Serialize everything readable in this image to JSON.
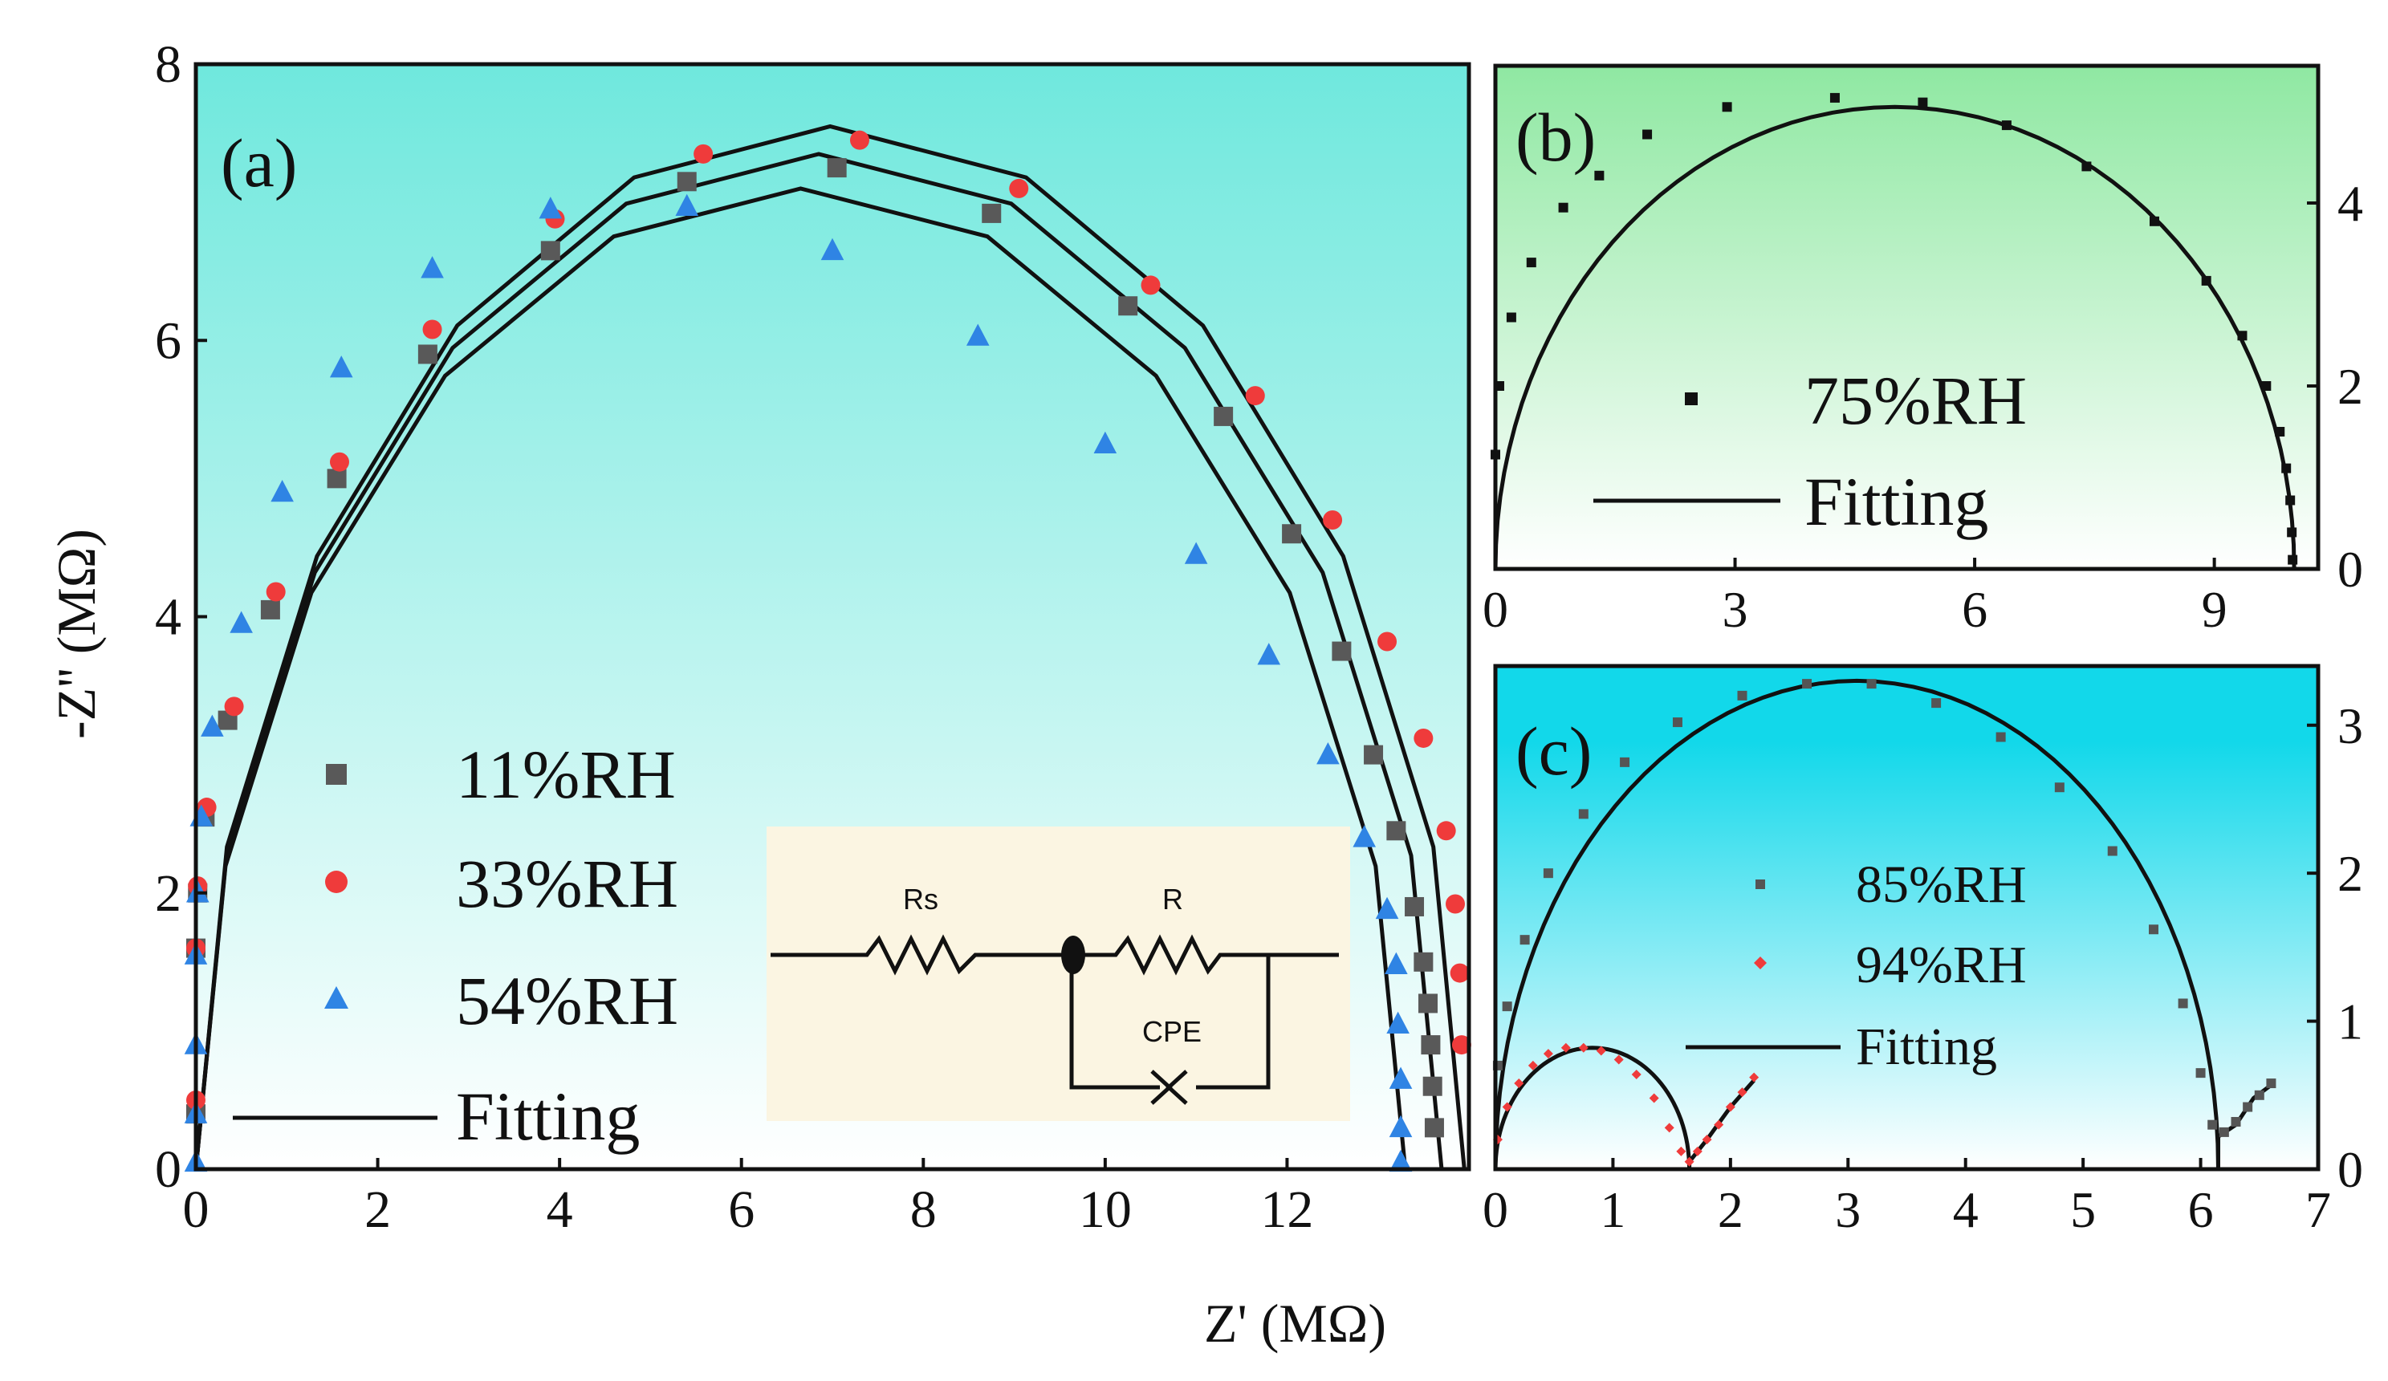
{
  "colors": {
    "series_11": "#595959",
    "series_33": "#ef3b3b",
    "series_54": "#2f84e4",
    "series_75": "#111111",
    "series_85": "#555555",
    "series_94": "#ef3b3b",
    "fit": "#111111",
    "bg_a_top": "#6fe8dd",
    "bg_a_bottom": "#ffffff",
    "bg_b_top": "#8fe8a2",
    "bg_b_bottom": "#ffffff",
    "bg_c_top": "#12d8ea",
    "bg_c_bottom": "#ffffff",
    "circuit_bg": "#fbf5e2"
  },
  "chart_data": [
    {
      "id": "a",
      "type": "scatter",
      "panel_label": "(a)",
      "xlabel": "Z' (MΩ)",
      "ylabel": "-Z'' (MΩ)",
      "xlim": [
        0,
        14
      ],
      "ylim": [
        0,
        8
      ],
      "xticks": [
        "0",
        "2",
        "4",
        "6",
        "8",
        "10",
        "12"
      ],
      "yticks": [
        "0",
        "2",
        "4",
        "6",
        "8"
      ],
      "series": [
        {
          "name": "11%RH",
          "marker": "square",
          "R": 13.7,
          "fit_peak": 7.35,
          "fit_points": 10,
          "point_peak": 7.25,
          "x": [
            0.0,
            0.0,
            0.02,
            0.1,
            0.35,
            0.82,
            1.55,
            2.55,
            3.9,
            5.4,
            7.05,
            8.75,
            10.25,
            11.3,
            12.05,
            12.6,
            12.95,
            13.2,
            13.4,
            13.5,
            13.55,
            13.58,
            13.6,
            13.62
          ],
          "y": [
            0.4,
            1.6,
            2.0,
            2.55,
            3.25,
            4.05,
            5.0,
            5.9,
            6.65,
            7.15,
            7.25,
            6.92,
            6.25,
            5.45,
            4.6,
            3.75,
            3.0,
            2.45,
            1.9,
            1.5,
            1.2,
            0.9,
            0.6,
            0.3
          ]
        },
        {
          "name": "33%RH",
          "marker": "circle",
          "R": 13.95,
          "fit_peak": 7.55,
          "fit_points": 10,
          "point_peak": 7.45,
          "x": [
            0.0,
            0.0,
            0.02,
            0.12,
            0.42,
            0.88,
            1.58,
            2.6,
            3.95,
            5.58,
            7.3,
            9.05,
            10.5,
            11.65,
            12.5,
            13.1,
            13.5,
            13.75,
            13.85,
            13.9,
            13.92
          ],
          "y": [
            0.5,
            1.6,
            2.05,
            2.62,
            3.35,
            4.18,
            5.12,
            6.08,
            6.88,
            7.35,
            7.45,
            7.1,
            6.4,
            5.6,
            4.7,
            3.82,
            3.12,
            2.45,
            1.92,
            1.42,
            0.9
          ]
        },
        {
          "name": "54%RH",
          "marker": "triangle",
          "R": 13.3,
          "fit_peak": 7.1,
          "fit_points": 10,
          "point_peak": 6.97,
          "x": [
            0.0,
            0.0,
            0.0,
            0.0,
            0.02,
            0.06,
            0.18,
            0.5,
            0.95,
            1.6,
            2.6,
            3.9,
            5.4,
            7.0,
            8.6,
            10.0,
            11.0,
            11.8,
            12.45,
            12.85,
            13.1,
            13.2,
            13.22,
            13.25,
            13.25,
            13.25
          ],
          "y": [
            0.05,
            0.4,
            0.9,
            1.55,
            2.0,
            2.55,
            3.2,
            3.95,
            4.9,
            5.8,
            6.52,
            6.95,
            6.97,
            6.65,
            6.03,
            5.25,
            4.45,
            3.72,
            3.0,
            2.4,
            1.88,
            1.48,
            1.05,
            0.65,
            0.3,
            0.05
          ]
        }
      ],
      "legend": [
        "11%RH",
        "33%RH",
        "54%RH",
        "Fitting"
      ],
      "inset_circuit": {
        "labels": [
          "Rs",
          "R",
          "CPE"
        ]
      }
    },
    {
      "id": "b",
      "type": "scatter",
      "panel_label": "(b)",
      "xlim": [
        0,
        10.3
      ],
      "ylim": [
        0,
        5.5
      ],
      "xticks": [
        "0",
        "3",
        "6",
        "9"
      ],
      "yticks": [
        "0",
        "2",
        "4"
      ],
      "series": [
        {
          "name": "75%RH",
          "marker": "square",
          "R": 10.0,
          "fit_peak": 5.05,
          "x": [
            0.0,
            0.05,
            0.2,
            0.45,
            0.85,
            1.3,
            1.9,
            2.9,
            4.25,
            5.35,
            6.4,
            7.4,
            8.25,
            8.9,
            9.35,
            9.65,
            9.82,
            9.9,
            9.95,
            9.97,
            9.98
          ],
          "y": [
            1.25,
            2.0,
            2.75,
            3.35,
            3.95,
            4.3,
            4.75,
            5.05,
            5.15,
            5.1,
            4.85,
            4.4,
            3.8,
            3.15,
            2.55,
            2.0,
            1.5,
            1.1,
            0.75,
            0.4,
            0.1
          ]
        }
      ],
      "legend": [
        "75%RH",
        "Fitting"
      ]
    },
    {
      "id": "c",
      "type": "scatter",
      "panel_label": "(c)",
      "xlim": [
        0,
        7
      ],
      "ylim": [
        0,
        3.4
      ],
      "xticks": [
        "0",
        "1",
        "2",
        "3",
        "4",
        "5",
        "6",
        "7"
      ],
      "yticks": [
        "0",
        "1",
        "2",
        "3"
      ],
      "series": [
        {
          "name": "85%RH",
          "marker": "square",
          "R": 6.15,
          "fit_peak": 3.3,
          "tail": [
            [
              6.15,
              0.22
            ],
            [
              6.3,
              0.3
            ],
            [
              6.45,
              0.48
            ],
            [
              6.62,
              0.58
            ]
          ],
          "x": [
            0.02,
            0.1,
            0.25,
            0.45,
            0.75,
            1.1,
            1.55,
            2.1,
            2.65,
            3.2,
            3.75,
            4.3,
            4.8,
            5.25,
            5.6,
            5.85,
            6.0,
            6.1,
            6.2,
            6.3,
            6.4,
            6.5,
            6.6
          ],
          "y": [
            0.7,
            1.1,
            1.55,
            2.0,
            2.4,
            2.75,
            3.02,
            3.2,
            3.28,
            3.28,
            3.15,
            2.92,
            2.58,
            2.15,
            1.62,
            1.12,
            0.65,
            0.3,
            0.25,
            0.32,
            0.42,
            0.5,
            0.58
          ]
        },
        {
          "name": "94%RH",
          "marker": "diamond",
          "R": 1.65,
          "fit_peak": 0.82,
          "tail": [
            [
              1.65,
              0.05
            ],
            [
              1.8,
              0.2
            ],
            [
              2.0,
              0.42
            ],
            [
              2.2,
              0.6
            ]
          ],
          "x": [
            0.02,
            0.1,
            0.2,
            0.32,
            0.45,
            0.6,
            0.75,
            0.9,
            1.05,
            1.2,
            1.35,
            1.48,
            1.58,
            1.65,
            1.72,
            1.8,
            1.9,
            2.0,
            2.1,
            2.2
          ],
          "y": [
            0.2,
            0.42,
            0.58,
            0.7,
            0.78,
            0.82,
            0.82,
            0.8,
            0.74,
            0.64,
            0.48,
            0.28,
            0.12,
            0.05,
            0.12,
            0.2,
            0.3,
            0.42,
            0.52,
            0.62
          ]
        }
      ],
      "legend": [
        "85%RH",
        "94%RH",
        "Fitting"
      ]
    }
  ]
}
